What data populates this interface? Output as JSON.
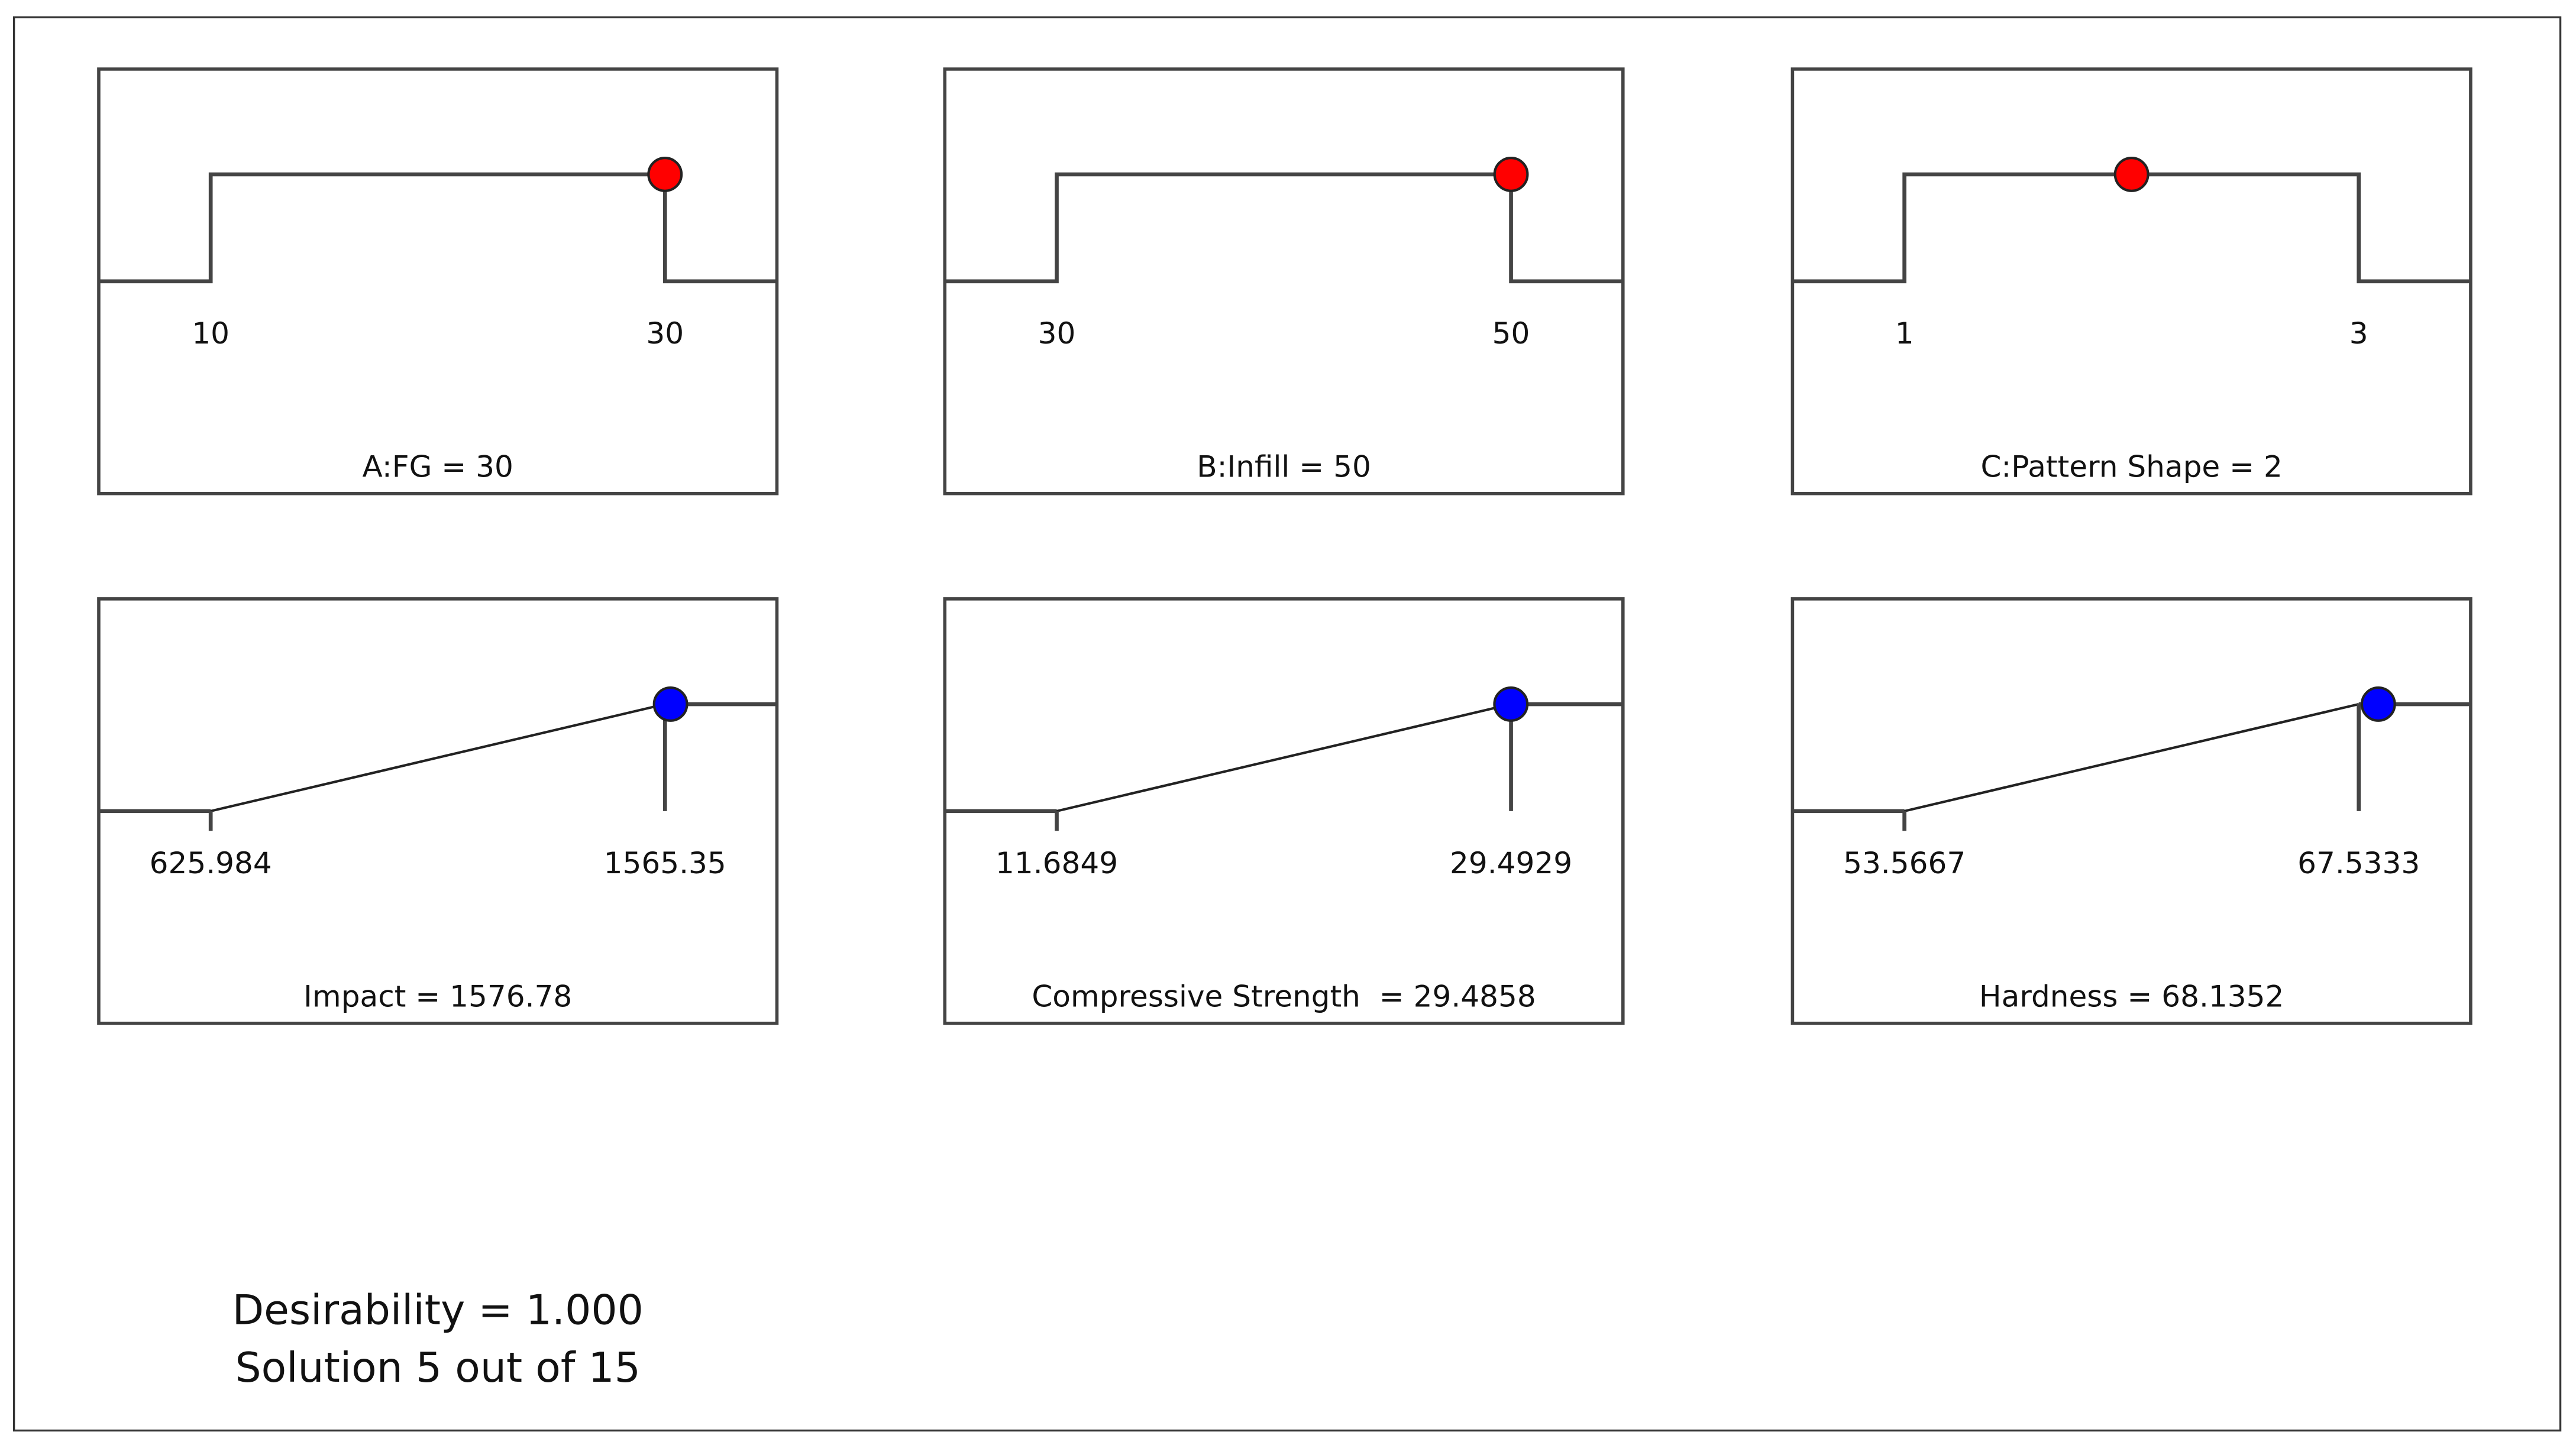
{
  "panels": [
    {
      "kind": "factor",
      "title": "A:FG = 30",
      "low": 10,
      "high": 30,
      "value": 30
    },
    {
      "kind": "factor",
      "title": "B:Infill = 50",
      "low": 30,
      "high": 50,
      "value": 50
    },
    {
      "kind": "factor",
      "title": "C:Pattern Shape = 2",
      "low": 1,
      "high": 3,
      "value": 2
    },
    {
      "kind": "response",
      "title": "Impact = 1576.78",
      "low": 625.984,
      "high": 1565.35,
      "value": 1576.78
    },
    {
      "kind": "response",
      "title": "Compressive Strength  = 29.4858",
      "low": 11.6849,
      "high": 29.4929,
      "value": 29.4858
    },
    {
      "kind": "response",
      "title": "Hardness = 68.1352",
      "low": 53.5667,
      "high": 67.5333,
      "value": 68.1352
    }
  ],
  "footer": {
    "desirability": "Desirability = 1.000",
    "solution": "Solution 5 out of 15"
  }
}
